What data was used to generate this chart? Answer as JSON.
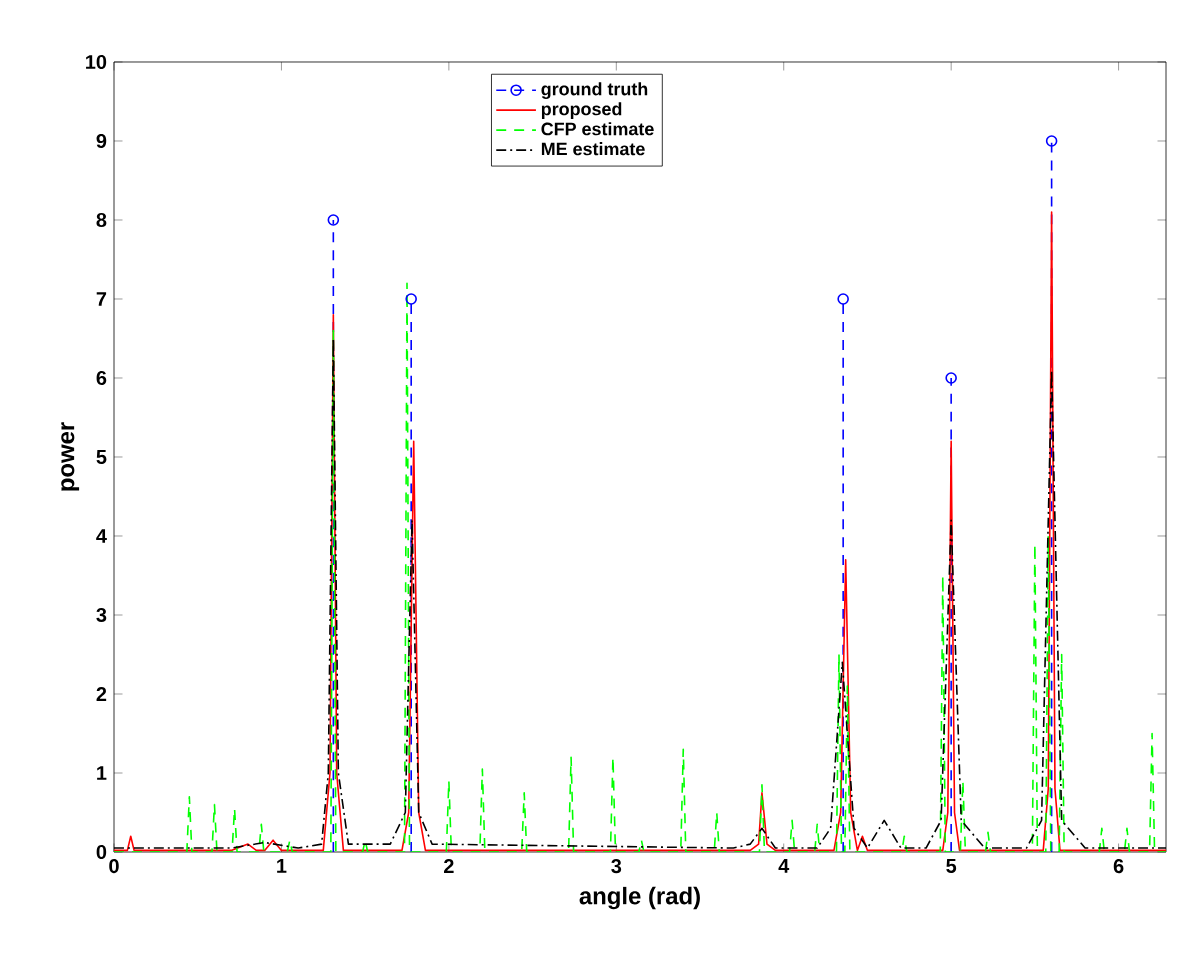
{
  "chart_data": {
    "type": "line",
    "xlabel": "angle (rad)",
    "ylabel": "power",
    "xlim": [
      0,
      6.2832
    ],
    "ylim": [
      0,
      10
    ],
    "xticks": [
      0,
      1,
      2,
      3,
      4,
      5,
      6
    ],
    "yticks": [
      0,
      1,
      2,
      3,
      4,
      5,
      6,
      7,
      8,
      9,
      10
    ],
    "grid": false,
    "legend": "top",
    "series": [
      {
        "name": "ground truth",
        "type": "lollipop",
        "color": "#0000ff",
        "line_style": "dashed",
        "marker": "circle",
        "x": [
          1.31,
          1.775,
          4.355,
          5.0,
          5.6
        ],
        "values": [
          8,
          7,
          7,
          6,
          9
        ]
      },
      {
        "name": "proposed",
        "type": "line",
        "color": "#ff0000",
        "line_style": "solid",
        "marker": "none",
        "x": [
          0,
          0.08,
          0.1,
          0.12,
          0.7,
          0.8,
          0.85,
          0.9,
          0.95,
          1.0,
          1.25,
          1.29,
          1.31,
          1.33,
          1.37,
          1.72,
          1.76,
          1.79,
          1.82,
          1.86,
          3.8,
          3.85,
          3.87,
          3.9,
          3.95,
          4.3,
          4.34,
          4.37,
          4.4,
          4.44,
          4.47,
          4.5,
          4.95,
          4.98,
          5.0,
          5.02,
          5.05,
          5.55,
          5.58,
          5.6,
          5.62,
          5.65,
          6.2832
        ],
        "values": [
          0.02,
          0.02,
          0.2,
          0.02,
          0.02,
          0.1,
          0.02,
          0.02,
          0.15,
          0.02,
          0.02,
          1,
          6.8,
          1,
          0.02,
          0.02,
          0.5,
          5.2,
          0.5,
          0.02,
          0.02,
          0.1,
          0.75,
          0.1,
          0.02,
          0.02,
          0.5,
          3.7,
          0.5,
          0.02,
          0.2,
          0.02,
          0.02,
          0.5,
          5.2,
          0.5,
          0.02,
          0.02,
          0.8,
          8.1,
          0.8,
          0.02,
          0.02
        ]
      },
      {
        "name": "CFP estimate",
        "type": "line",
        "color": "#00ff00",
        "line_style": "dashed",
        "marker": "none",
        "x": [
          0,
          0.435,
          0.45,
          0.465,
          0.585,
          0.6,
          0.615,
          0.705,
          0.72,
          0.735,
          0.865,
          0.88,
          0.895,
          1.035,
          1.05,
          1.065,
          1.295,
          1.31,
          1.325,
          1.485,
          1.5,
          1.515,
          1.735,
          1.75,
          1.765,
          1.985,
          2.0,
          2.015,
          2.185,
          2.2,
          2.215,
          2.435,
          2.45,
          2.465,
          2.715,
          2.73,
          2.745,
          2.965,
          2.98,
          2.995,
          3.135,
          3.15,
          3.165,
          3.385,
          3.4,
          3.415,
          3.585,
          3.6,
          3.615,
          3.855,
          3.87,
          3.885,
          4.035,
          4.05,
          4.065,
          4.185,
          4.2,
          4.215,
          4.315,
          4.33,
          4.345,
          4.365,
          4.38,
          4.395,
          4.705,
          4.72,
          4.735,
          4.935,
          4.95,
          4.965,
          5.055,
          5.07,
          5.085,
          5.205,
          5.22,
          5.235,
          5.485,
          5.5,
          5.515,
          5.565,
          5.58,
          5.595,
          5.645,
          5.66,
          5.675,
          5.885,
          5.9,
          5.915,
          6.035,
          6.05,
          6.065,
          6.185,
          6.2,
          6.215,
          6.2832
        ],
        "values": [
          0,
          0,
          0.7,
          0,
          0,
          0.6,
          0,
          0,
          0.55,
          0,
          0,
          0.35,
          0,
          0,
          0.15,
          0,
          0,
          6.6,
          0,
          0,
          0.15,
          0,
          0,
          7.2,
          0,
          0,
          0.9,
          0,
          0,
          1.05,
          0,
          0,
          0.75,
          0,
          0,
          1.2,
          0,
          0,
          1.2,
          0,
          0,
          0.15,
          0,
          0,
          1.3,
          0,
          0,
          0.5,
          0,
          0,
          0.85,
          0,
          0,
          0.4,
          0,
          0,
          0.35,
          0,
          0,
          2.5,
          0,
          0,
          2.1,
          0,
          0,
          0.2,
          0,
          0,
          3.5,
          0,
          0,
          0.9,
          0,
          0,
          0.25,
          0,
          0,
          3.9,
          0,
          0,
          4.0,
          0,
          0,
          2.5,
          0,
          0,
          0.3,
          0,
          0,
          0.3,
          0,
          0,
          1.5,
          0,
          0
        ]
      },
      {
        "name": "ME estimate",
        "type": "line",
        "color": "#000000",
        "line_style": "dashdot",
        "marker": "none",
        "x": [
          0,
          0.7,
          0.9,
          1.1,
          1.24,
          1.28,
          1.31,
          1.34,
          1.4,
          1.65,
          1.74,
          1.78,
          1.82,
          1.9,
          3.7,
          3.8,
          3.87,
          3.95,
          4.2,
          4.28,
          4.35,
          4.42,
          4.5,
          4.6,
          4.7,
          4.85,
          4.94,
          5.0,
          5.06,
          5.2,
          5.45,
          5.54,
          5.6,
          5.66,
          5.8,
          6.2832
        ],
        "values": [
          0.05,
          0.05,
          0.12,
          0.05,
          0.1,
          1,
          6.5,
          1,
          0.1,
          0.1,
          0.5,
          4.2,
          0.5,
          0.1,
          0.05,
          0.1,
          0.3,
          0.05,
          0.05,
          0.3,
          2.4,
          0.3,
          0.05,
          0.4,
          0.05,
          0.05,
          0.4,
          4.2,
          0.4,
          0.05,
          0.05,
          0.4,
          6.1,
          0.4,
          0.05,
          0.05
        ]
      }
    ]
  }
}
